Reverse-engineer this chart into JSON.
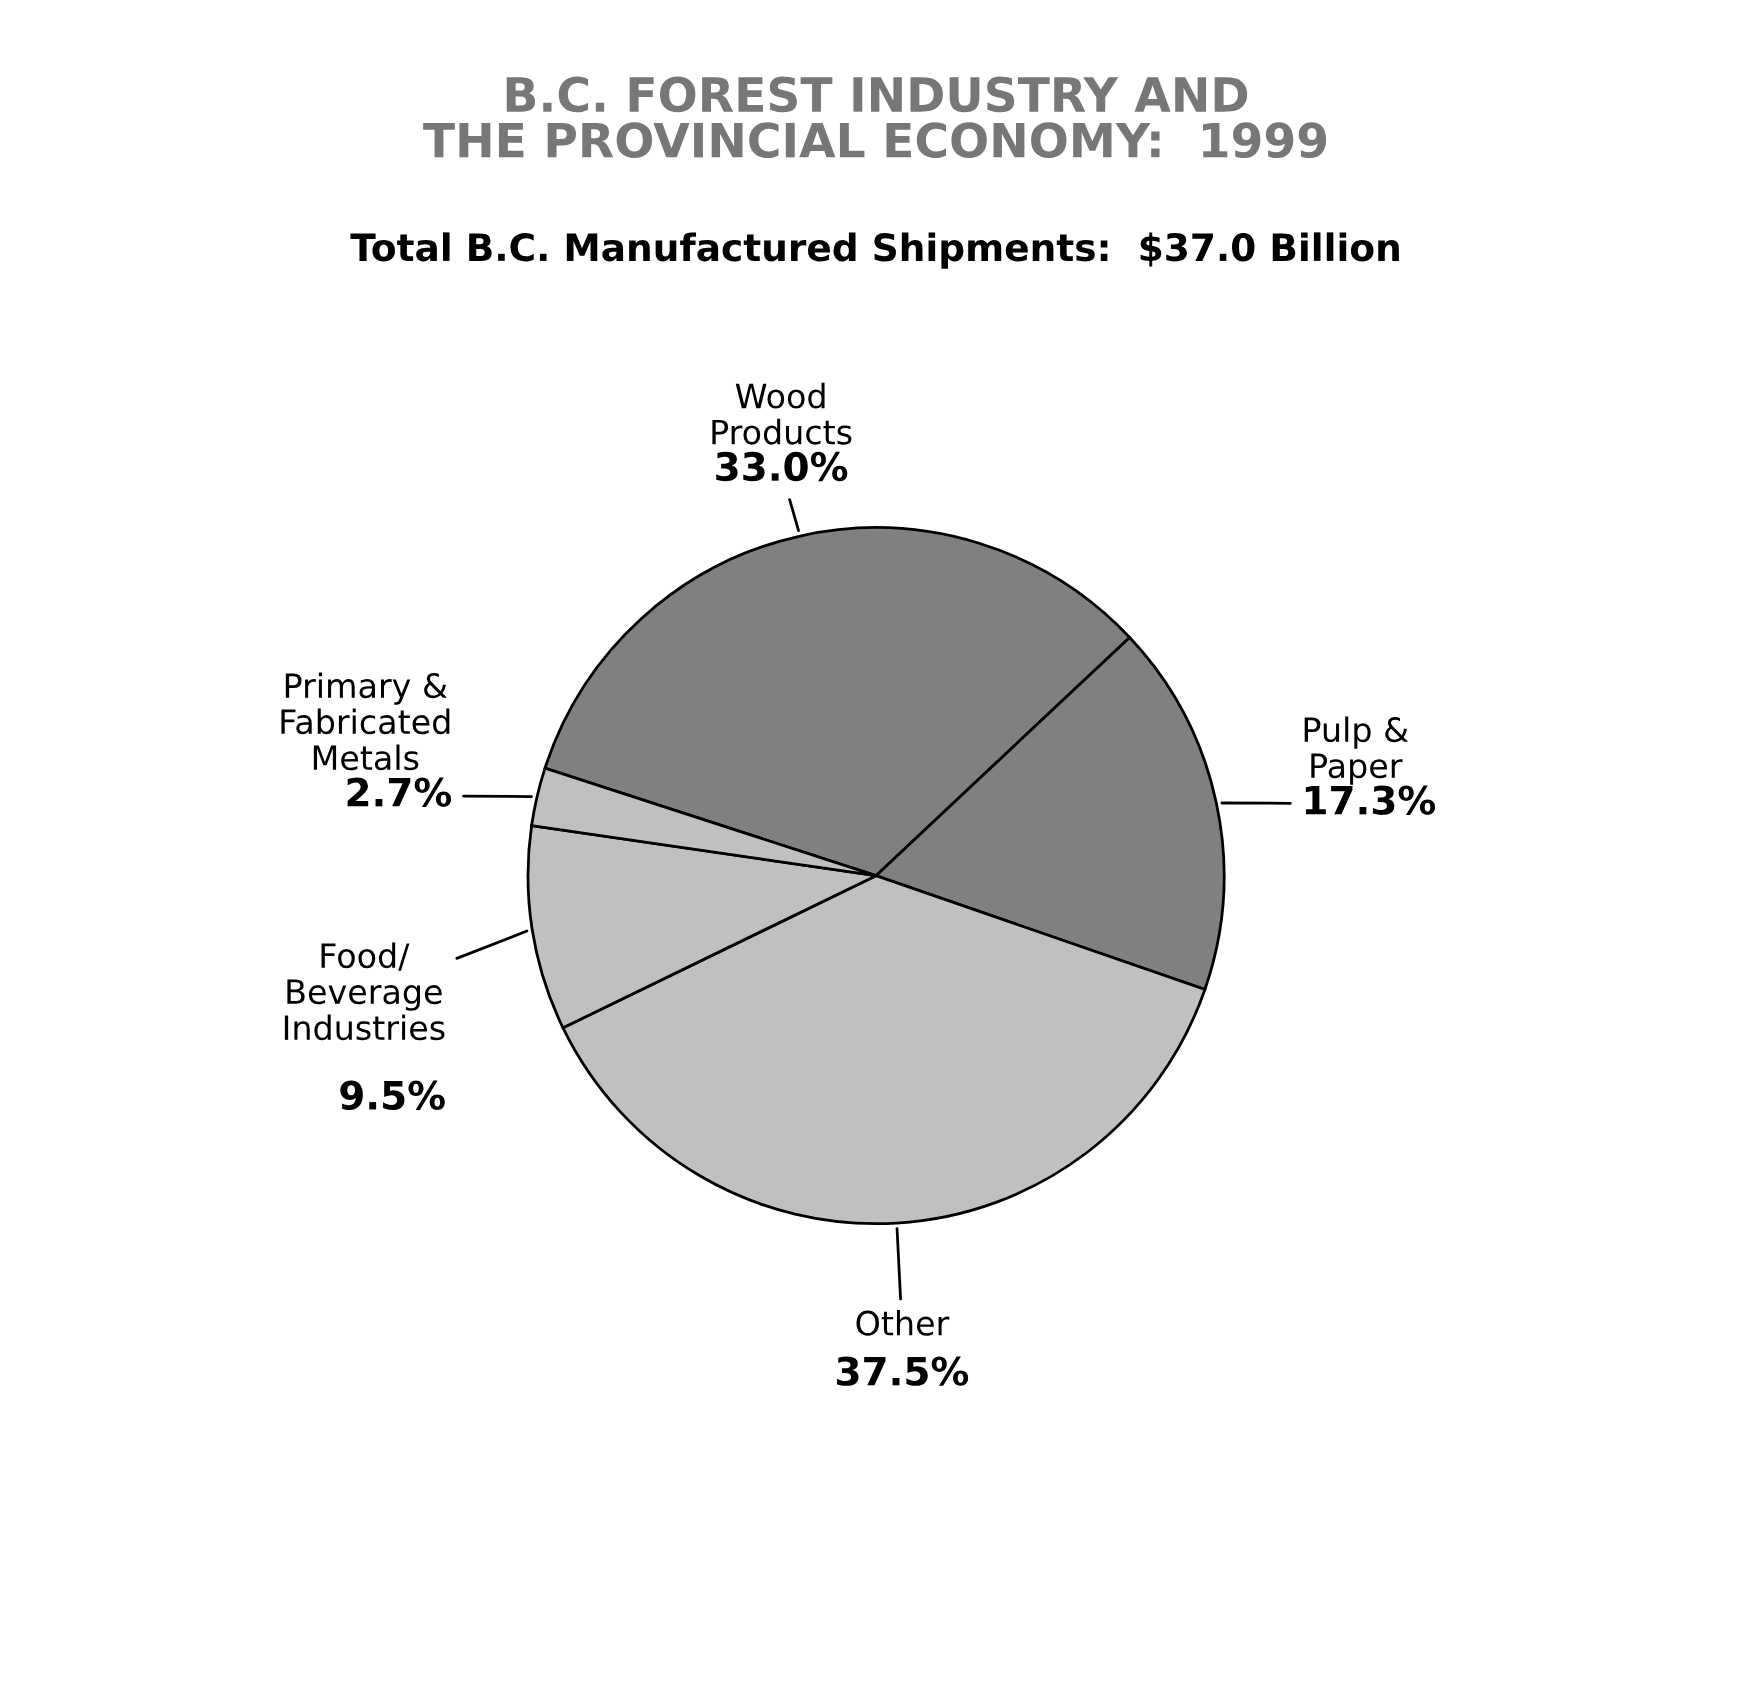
{
  "chart_data": {
    "type": "pie",
    "title": "B.C. FOREST INDUSTRY AND\nTHE PROVINCIAL ECONOMY:  1999",
    "subtitle": "Total B.C. Manufactured Shipments:  $37.0 Billion",
    "categories": [
      "Wood\nProducts",
      "Pulp &\nPaper",
      "Other",
      "Food/\nBeverage\nIndustries",
      "Primary &\nFabricated\nMetals"
    ],
    "values": [
      33.0,
      17.3,
      37.5,
      9.5,
      2.7
    ],
    "value_labels": [
      "33.0%",
      "17.3%",
      "37.5%",
      "9.5%",
      "2.7%"
    ],
    "colors": [
      "#808080",
      "#808080",
      "#c0c0c0",
      "#c0c0c0",
      "#c0c0c0"
    ]
  }
}
